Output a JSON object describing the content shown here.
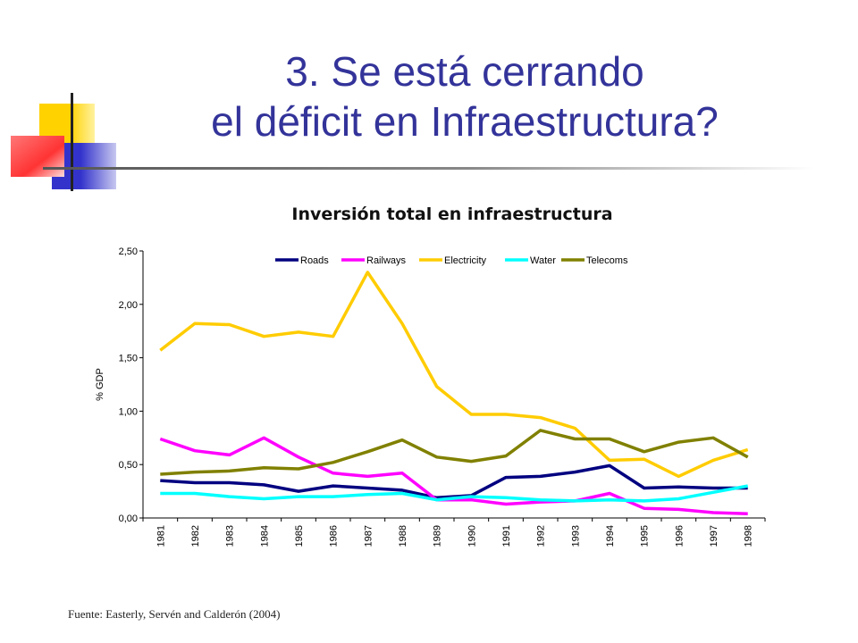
{
  "slide": {
    "title_line1": "3. Se está cerrando",
    "title_line2": "el déficit en Infraestructura?",
    "source": "Fuente: Easterly, Servén and Calderón (2004)"
  },
  "colors": {
    "title": "#33339a",
    "deco_yellow": "#ffd200",
    "deco_blue": "#3333cc",
    "deco_red": "#ff3333"
  },
  "chart_data": {
    "type": "line",
    "title": "Inversión total en infraestructura",
    "xlabel": "",
    "ylabel": "% GDP",
    "ylim": [
      0,
      2.5
    ],
    "yticks": [
      "0,00",
      "0,50",
      "1,00",
      "1,50",
      "2,00",
      "2,50"
    ],
    "ytick_values": [
      0,
      0.5,
      1.0,
      1.5,
      2.0,
      2.5
    ],
    "categories": [
      "1981",
      "1982",
      "1983",
      "1984",
      "1985",
      "1986",
      "1987",
      "1988",
      "1989",
      "1990",
      "1991",
      "1992",
      "1993",
      "1994",
      "1995",
      "1996",
      "1997",
      "1998"
    ],
    "grid": false,
    "legend_position": "top",
    "series": [
      {
        "name": "Roads",
        "color": "#000080",
        "values": [
          0.35,
          0.33,
          0.33,
          0.31,
          0.25,
          0.3,
          0.28,
          0.26,
          0.19,
          0.21,
          0.38,
          0.39,
          0.43,
          0.49,
          0.28,
          0.29,
          0.28,
          0.28
        ]
      },
      {
        "name": "Railways",
        "color": "#ff00ff",
        "values": [
          0.74,
          0.63,
          0.59,
          0.75,
          0.57,
          0.42,
          0.39,
          0.42,
          0.17,
          0.17,
          0.13,
          0.15,
          0.16,
          0.23,
          0.09,
          0.08,
          0.05,
          0.04
        ]
      },
      {
        "name": "Electricity",
        "color": "#ffcc00",
        "values": [
          1.57,
          1.82,
          1.81,
          1.7,
          1.74,
          1.7,
          2.3,
          1.82,
          1.23,
          0.97,
          0.97,
          0.94,
          0.84,
          0.54,
          0.55,
          0.39,
          0.54,
          0.64
        ]
      },
      {
        "name": "Water",
        "color": "#00ffff",
        "values": [
          0.23,
          0.23,
          0.2,
          0.18,
          0.2,
          0.2,
          0.22,
          0.23,
          0.17,
          0.2,
          0.19,
          0.17,
          0.16,
          0.17,
          0.16,
          0.18,
          0.24,
          0.3
        ]
      },
      {
        "name": "Telecoms",
        "color": "#808000",
        "values": [
          0.41,
          0.43,
          0.44,
          0.47,
          0.46,
          0.52,
          0.62,
          0.73,
          0.57,
          0.53,
          0.58,
          0.82,
          0.74,
          0.74,
          0.62,
          0.71,
          0.75,
          0.57
        ]
      }
    ]
  }
}
